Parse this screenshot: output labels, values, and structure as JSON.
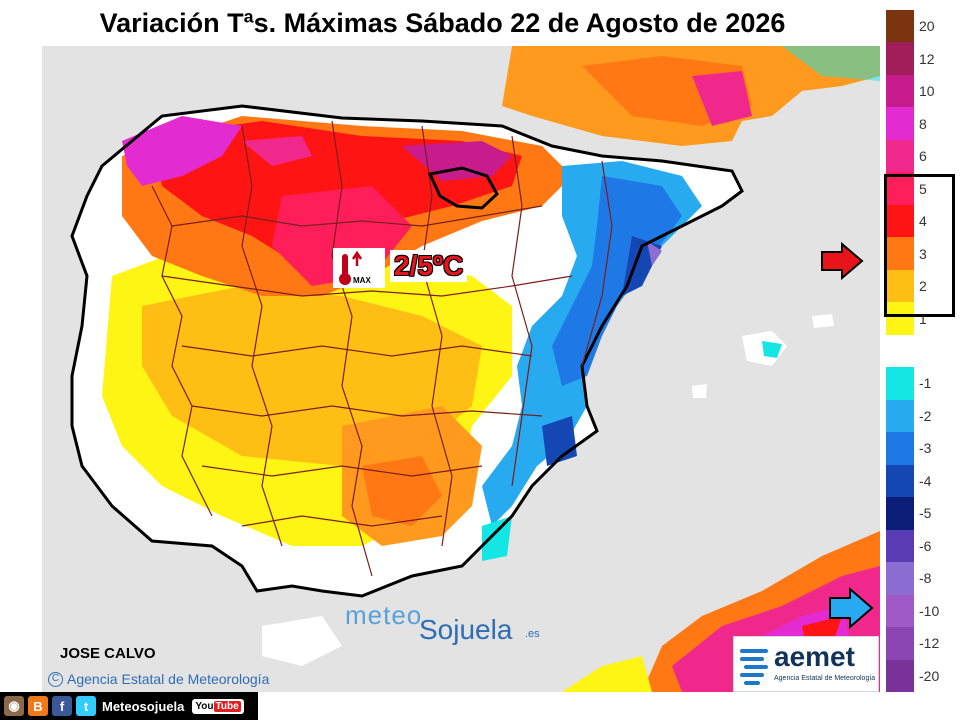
{
  "title": "Variación Tªs. Máximas Sábado 22 de Agosto de 2026",
  "highlight": {
    "label": "2/5ºC",
    "icon": "thermometer-max-up-icon",
    "icon_caption": "MAX"
  },
  "legend": {
    "items": [
      {
        "label": "20",
        "color": "#7a3410"
      },
      {
        "label": "12",
        "color": "#a01e5a"
      },
      {
        "label": "10",
        "color": "#c81c8c"
      },
      {
        "label": "8",
        "color": "#e22cd2"
      },
      {
        "label": "6",
        "color": "#f0288c"
      },
      {
        "label": "5",
        "color": "#ff1e5a"
      },
      {
        "label": "4",
        "color": "#ff1414"
      },
      {
        "label": "3",
        "color": "#ff7814"
      },
      {
        "label": "2",
        "color": "#ffbe14"
      },
      {
        "label": "1",
        "color": "#fff514"
      },
      {
        "label": "",
        "color": "#ffffff"
      },
      {
        "label": "-1",
        "color": "#14e6e6"
      },
      {
        "label": "-2",
        "color": "#28aaf0"
      },
      {
        "label": "-3",
        "color": "#1e78e6"
      },
      {
        "label": "-4",
        "color": "#1446b4"
      },
      {
        "label": "-5",
        "color": "#0a1e78"
      },
      {
        "label": "-6",
        "color": "#5a3cb4"
      },
      {
        "label": "-8",
        "color": "#8c6ed2"
      },
      {
        "label": "-10",
        "color": "#a05ac8"
      },
      {
        "label": "-12",
        "color": "#8c46b4"
      },
      {
        "label": "-20",
        "color": "#78329a"
      }
    ]
  },
  "watermark": {
    "part1": "meteo",
    "part2": "Sojuela",
    "suffix": ".es"
  },
  "author": "JOSE CALVO",
  "credit": "Agencia Estatal de Meteorología",
  "credit_symbol": "C",
  "aemet": {
    "name": "aemet",
    "subtitle": "Agencia Estatal de Meteorología"
  },
  "social": {
    "handle": "Meteosojuela",
    "youtube_1": "You",
    "youtube_2": "Tube"
  }
}
